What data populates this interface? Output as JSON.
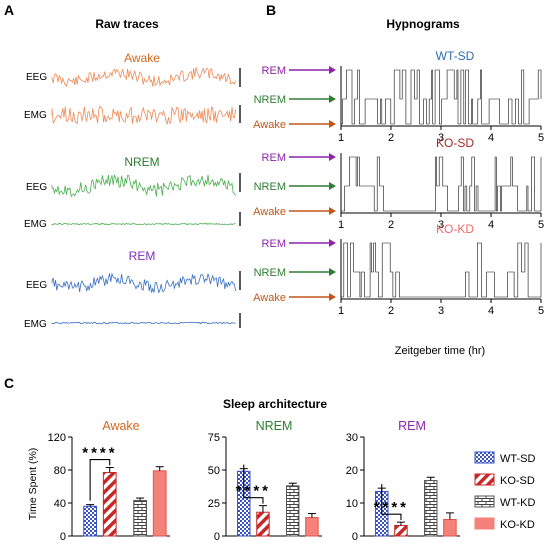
{
  "panel_labels": {
    "a": "A",
    "b": "B",
    "c": "C"
  },
  "raw_traces": {
    "title": "Raw traces",
    "eeg_label": "EEG",
    "emg_label": "EMG",
    "states": [
      {
        "name": "Awake",
        "color": "#d2691e"
      },
      {
        "name": "NREM",
        "color": "#2e7d32"
      },
      {
        "name": "REM",
        "color": "#7b2fbe"
      }
    ],
    "trace_colors": {
      "awake": "#ef8a55",
      "nrem": "#4caf50",
      "rem": "#3a6fc4"
    }
  },
  "hypnograms": {
    "title": "Hypnograms",
    "state_labels": {
      "rem": "REM",
      "nrem": "NREM",
      "awake": "Awake"
    },
    "state_colors": {
      "rem": "#8e24aa",
      "nrem": "#2e7d32",
      "awake": "#c0561a"
    },
    "xlabel": "Zeitgeber time (hr)",
    "ticks": [
      "1",
      "2",
      "3",
      "4",
      "5"
    ],
    "rows": [
      {
        "name": "WT-SD",
        "color": "#2f6db5"
      },
      {
        "name": "KO-SD",
        "color": "#a52a2a"
      },
      {
        "name": "KO-KD",
        "color": "#f06a6a"
      }
    ]
  },
  "sleep_architecture": {
    "title": "Sleep architecture",
    "ylabel": "Time Spent (%)",
    "significance": "****",
    "legend": [
      {
        "name": "WT-SD",
        "pattern": "checker",
        "color": "#3a52c8"
      },
      {
        "name": "KO-SD",
        "pattern": "diagonal",
        "color": "#c62828"
      },
      {
        "name": "WT-KD",
        "pattern": "brick",
        "color": "#555555"
      },
      {
        "name": "KO-KD",
        "pattern": "solid",
        "color": "#f4817a"
      }
    ]
  },
  "chart_data": [
    {
      "type": "bar",
      "title": "Awake",
      "title_color": "#d2691e",
      "ylabel": "Time Spent (%)",
      "ylim": [
        0,
        120
      ],
      "yticks": [
        0,
        40,
        80,
        120
      ],
      "categories": [
        "WT-SD",
        "KO-SD",
        "WT-KD",
        "KO-KD"
      ],
      "values": [
        36,
        77,
        43,
        79
      ],
      "errors": [
        2,
        6,
        3,
        5
      ],
      "significance": {
        "between": [
          "WT-SD",
          "KO-SD"
        ],
        "label": "****"
      }
    },
    {
      "type": "bar",
      "title": "NREM",
      "title_color": "#2e7d32",
      "ylim": [
        0,
        75
      ],
      "yticks": [
        0,
        25,
        50,
        75
      ],
      "categories": [
        "WT-SD",
        "KO-SD",
        "WT-KD",
        "KO-KD"
      ],
      "values": [
        49,
        18,
        38,
        14
      ],
      "errors": [
        2,
        5,
        2,
        3
      ],
      "significance": {
        "between": [
          "WT-SD",
          "KO-SD"
        ],
        "label": "****"
      }
    },
    {
      "type": "bar",
      "title": "REM",
      "title_color": "#8e24aa",
      "ylim": [
        0,
        30
      ],
      "yticks": [
        0,
        10,
        20,
        30
      ],
      "categories": [
        "WT-SD",
        "KO-SD",
        "WT-KD",
        "KO-KD"
      ],
      "values": [
        13.5,
        3.2,
        16.8,
        5
      ],
      "errors": [
        1,
        1,
        1,
        2
      ],
      "significance": {
        "between": [
          "WT-SD",
          "KO-SD"
        ],
        "label": "****"
      }
    }
  ]
}
